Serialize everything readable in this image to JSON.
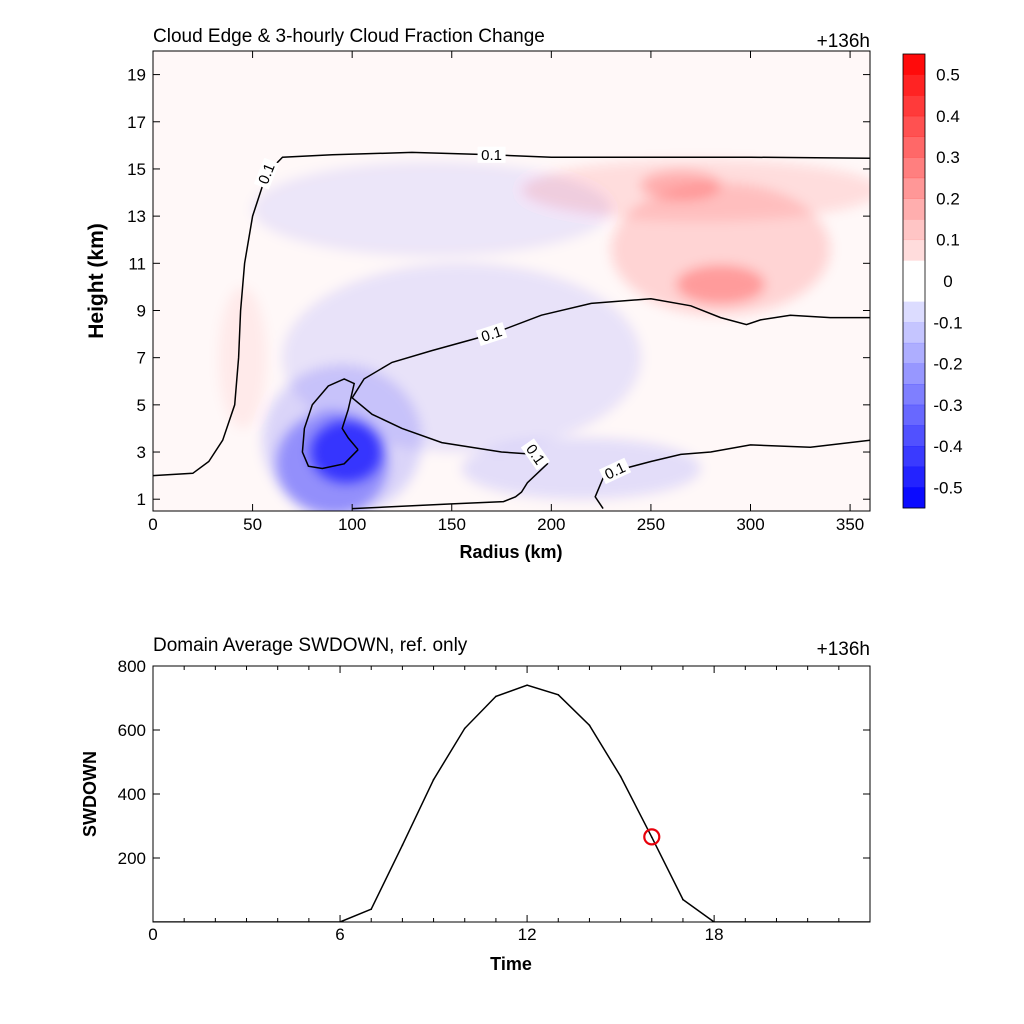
{
  "chart_data": [
    {
      "type": "heatmap",
      "title": "Cloud Edge & 3-hourly Cloud Fraction Change",
      "time_label": "+136h",
      "xlabel": "Radius (km)",
      "ylabel": "Height (km)",
      "xlim": [
        0,
        360
      ],
      "ylim": [
        0.5,
        20
      ],
      "x_ticks": [
        "0",
        "50",
        "100",
        "150",
        "200",
        "250",
        "300",
        "350"
      ],
      "y_ticks": [
        "1",
        "3",
        "5",
        "7",
        "9",
        "11",
        "13",
        "15",
        "17",
        "19"
      ],
      "colorbar": {
        "labels": [
          "0.5",
          "0.4",
          "0.3",
          "0.2",
          "0.1",
          "0",
          "-0.1",
          "-0.2",
          "-0.3",
          "-0.4",
          "-0.5"
        ],
        "range": [
          -0.55,
          0.55
        ],
        "positive_color": "#ff0000",
        "negative_color": "#0000ff"
      },
      "contour": {
        "level_label": "0.1",
        "lines": [
          [
            [
              0,
              2
            ],
            [
              20,
              2.1
            ],
            [
              28,
              2.6
            ],
            [
              35,
              3.5
            ],
            [
              41,
              5
            ],
            [
              43,
              7
            ],
            [
              44,
              9
            ],
            [
              46,
              11
            ],
            [
              50,
              13
            ],
            [
              57,
              14.8
            ],
            [
              65,
              15.5
            ],
            [
              90,
              15.6
            ],
            [
              130,
              15.7
            ],
            [
              170,
              15.6
            ],
            [
              200,
              15.5
            ],
            [
              250,
              15.5
            ],
            [
              300,
              15.5
            ],
            [
              360,
              15.45
            ]
          ],
          [
            [
              360,
              8.7
            ],
            [
              340,
              8.7
            ],
            [
              320,
              8.8
            ],
            [
              305,
              8.6
            ],
            [
              298,
              8.4
            ],
            [
              285,
              8.7
            ],
            [
              270,
              9.2
            ],
            [
              250,
              9.5
            ],
            [
              220,
              9.3
            ],
            [
              195,
              8.8
            ],
            [
              170,
              8
            ],
            [
              140,
              7.3
            ],
            [
              120,
              6.8
            ],
            [
              106,
              6.1
            ],
            [
              100,
              5.3
            ],
            [
              110,
              4.6
            ],
            [
              125,
              4
            ],
            [
              145,
              3.4
            ],
            [
              175,
              3
            ],
            [
              192,
              2.9
            ],
            [
              198,
              2.5
            ],
            [
              188,
              1.7
            ],
            [
              185,
              1.3
            ],
            [
              182,
              1.1
            ],
            [
              176,
              0.9
            ],
            [
              150,
              0.8
            ],
            [
              125,
              0.7
            ],
            [
              100,
              0.6
            ]
          ],
          [
            [
              226,
              0.6
            ],
            [
              222,
              1.1
            ],
            [
              226,
              1.9
            ],
            [
              232,
              2.2
            ],
            [
              250,
              2.6
            ],
            [
              265,
              2.9
            ],
            [
              280,
              3
            ],
            [
              300,
              3.3
            ],
            [
              330,
              3.2
            ],
            [
              360,
              3.5
            ]
          ],
          [
            [
              103,
              3.1
            ],
            [
              96,
              2.5
            ],
            [
              85,
              2.3
            ],
            [
              78,
              2.4
            ],
            [
              75,
              3
            ],
            [
              76,
              4
            ],
            [
              80,
              5
            ],
            [
              88,
              5.8
            ],
            [
              96,
              6.1
            ],
            [
              101,
              5.9
            ],
            [
              98,
              4.8
            ],
            [
              95,
              4
            ],
            [
              98,
              3.6
            ],
            [
              103,
              3.1
            ]
          ]
        ]
      },
      "anomalies": [
        {
          "x": 97,
          "y": 3.0,
          "rx": 18,
          "ry": 1.3,
          "value": -0.35
        },
        {
          "x": 90,
          "y": 2.5,
          "rx": 28,
          "ry": 2.2,
          "value": -0.18
        },
        {
          "x": 95,
          "y": 3.5,
          "rx": 40,
          "ry": 3.2,
          "value": -0.08
        },
        {
          "x": 155,
          "y": 7.0,
          "rx": 90,
          "ry": 4.0,
          "value": -0.05
        },
        {
          "x": 215,
          "y": 2.3,
          "rx": 60,
          "ry": 1.3,
          "value": -0.06
        },
        {
          "x": 140,
          "y": 13.3,
          "rx": 90,
          "ry": 2.0,
          "value": -0.04
        },
        {
          "x": 275,
          "y": 14.1,
          "rx": 90,
          "ry": 1.3,
          "value": 0.06
        },
        {
          "x": 285,
          "y": 11.6,
          "rx": 55,
          "ry": 2.8,
          "value": 0.08
        },
        {
          "x": 285,
          "y": 10.1,
          "rx": 22,
          "ry": 0.8,
          "value": 0.15
        },
        {
          "x": 265,
          "y": 14.3,
          "rx": 20,
          "ry": 0.6,
          "value": 0.12
        },
        {
          "x": 45,
          "y": 7.0,
          "rx": 12,
          "ry": 3.0,
          "value": 0.03
        }
      ]
    },
    {
      "type": "line",
      "title": "Domain Average SWDOWN, ref. only",
      "time_label": "+136h",
      "xlabel": "Time",
      "ylabel": "SWDOWN",
      "xlim": [
        0,
        23
      ],
      "ylim": [
        0,
        800
      ],
      "x_ticks": [
        "0",
        "6",
        "12",
        "18"
      ],
      "y_ticks": [
        "200",
        "400",
        "600",
        "800"
      ],
      "x": [
        0,
        1,
        2,
        3,
        4,
        5,
        6,
        7,
        8,
        9,
        10,
        11,
        12,
        13,
        14,
        15,
        16,
        17,
        18,
        19,
        20,
        21,
        22,
        23
      ],
      "values": [
        0,
        0,
        0,
        0,
        0,
        0,
        0,
        40,
        240,
        445,
        605,
        705,
        740,
        710,
        615,
        455,
        265,
        70,
        0,
        0,
        0,
        0,
        0,
        0
      ],
      "marker": {
        "x": 16,
        "y": 266,
        "color": "#e8000b"
      }
    }
  ]
}
